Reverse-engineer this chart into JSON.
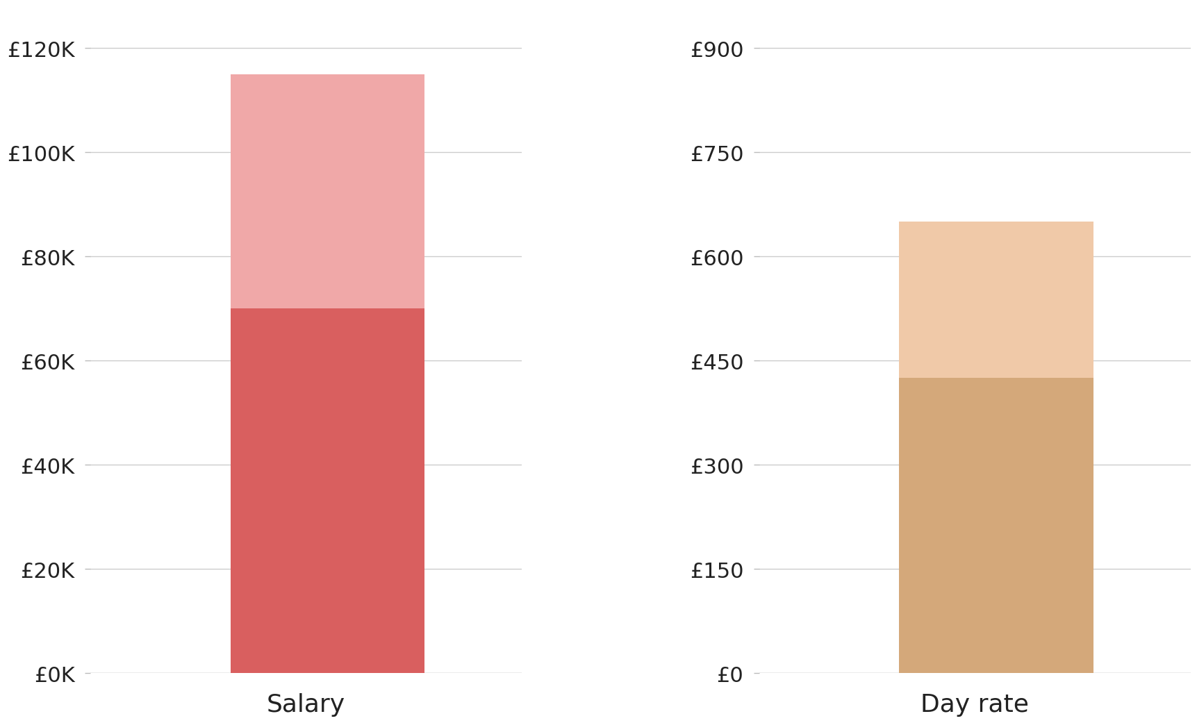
{
  "salary_lower": 70000,
  "salary_upper": 115000,
  "salary_yticks": [
    0,
    20000,
    40000,
    60000,
    80000,
    100000,
    120000
  ],
  "salary_yticklabels": [
    "£0K",
    "£20K",
    "£40K",
    "£60K",
    "£80K",
    "£100K",
    "£120K"
  ],
  "salary_ylim": [
    0,
    128000
  ],
  "salary_color_lower": "#d95f5f",
  "salary_color_upper": "#f0a8a8",
  "salary_xlabel": "Salary",
  "dayrate_lower": 425,
  "dayrate_upper": 650,
  "dayrate_yticks": [
    0,
    150,
    300,
    450,
    600,
    750,
    900
  ],
  "dayrate_yticklabels": [
    "£0",
    "£150",
    "£300",
    "£450",
    "£600",
    "£750",
    "£900"
  ],
  "dayrate_ylim": [
    0,
    960
  ],
  "dayrate_color_lower": "#d4a87a",
  "dayrate_color_upper": "#f0c9a8",
  "dayrate_xlabel": "Day rate",
  "background_color": "#ffffff",
  "bar_width": 0.45,
  "xlabel_fontsize": 26,
  "tick_fontsize": 22,
  "grid_color": "#cccccc",
  "grid_linewidth": 1.0,
  "tick_color": "#bbbbbb",
  "tick_label_color": "#222222"
}
